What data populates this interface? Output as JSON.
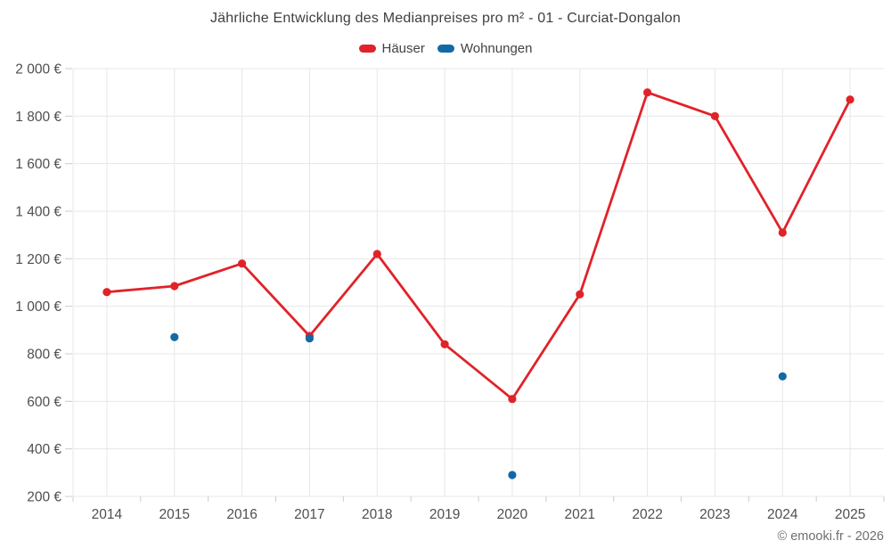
{
  "title": "Jährliche Entwicklung des Medianpreises pro m² - 01 - Curciat-Dongalon",
  "copyright": "© emooki.fr - 2026",
  "legend": [
    {
      "label": "Häuser",
      "color": "#e02329"
    },
    {
      "label": "Wohnungen",
      "color": "#1269a5"
    }
  ],
  "chart_data": {
    "type": "line",
    "title": "Jährliche Entwicklung des Medianpreises pro m² - 01 - Curciat-Dongalon",
    "categories": [
      "2014",
      "2015",
      "2016",
      "2017",
      "2018",
      "2019",
      "2020",
      "2021",
      "2022",
      "2023",
      "2024",
      "2025"
    ],
    "series": [
      {
        "name": "Häuser",
        "type": "line",
        "color": "#e02329",
        "values": [
          1060,
          1085,
          1180,
          875,
          1220,
          840,
          610,
          1050,
          1900,
          1800,
          1310,
          1870
        ]
      },
      {
        "name": "Wohnungen",
        "type": "scatter",
        "color": "#1269a5",
        "values": [
          null,
          870,
          null,
          865,
          null,
          null,
          290,
          null,
          null,
          null,
          705,
          null
        ]
      }
    ],
    "xlabel": "",
    "ylabel": "",
    "ylim": [
      200,
      2000
    ],
    "yticks": [
      {
        "value": 200,
        "label": "200 €"
      },
      {
        "value": 400,
        "label": "400 €"
      },
      {
        "value": 600,
        "label": "600 €"
      },
      {
        "value": 800,
        "label": "800 €"
      },
      {
        "value": 1000,
        "label": "1 000 €"
      },
      {
        "value": 1200,
        "label": "1 200 €"
      },
      {
        "value": 1400,
        "label": "1 400 €"
      },
      {
        "value": 1600,
        "label": "1 600 €"
      },
      {
        "value": 1800,
        "label": "1 800 €"
      },
      {
        "value": 2000,
        "label": "2 000 €"
      }
    ],
    "grid": true,
    "legend_position": "top",
    "grid_color": "#e7e7e7",
    "tick_color": "#cccccc",
    "axis_label_color": "#4f4f4f"
  }
}
